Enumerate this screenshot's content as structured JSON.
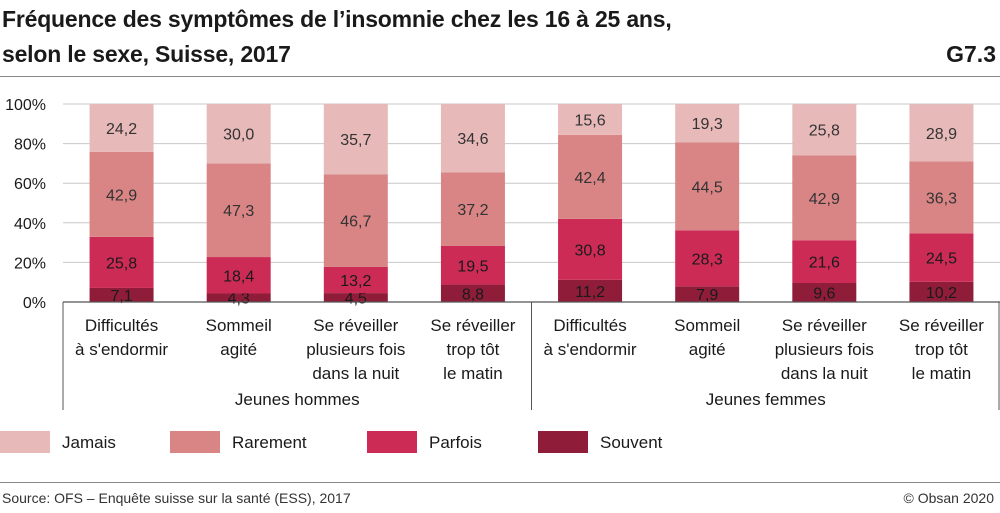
{
  "header": {
    "title_line1": "Fréquence des symptômes de l’insomnie chez les 16 à 25 ans,",
    "title_line2": "selon le sexe, Suisse, 2017",
    "code": "G7.3"
  },
  "footer": {
    "source": "Source: OFS – Enquête suisse sur la santé (ESS), 2017",
    "copyright": "© Obsan 2020"
  },
  "colors": {
    "Jamais": "#e8b9b9",
    "Rarement": "#d98585",
    "Parfois": "#cc2b56",
    "Souvent": "#8f1d3a",
    "grid": "#c8c8c8",
    "axis": "#555555"
  },
  "chart_data": {
    "type": "bar",
    "stacked": true,
    "normalized": true,
    "ylim": [
      0,
      100
    ],
    "yticks": [
      "0%",
      "20%",
      "40%",
      "60%",
      "80%",
      "100%"
    ],
    "ytick_values": [
      0,
      20,
      40,
      60,
      80,
      100
    ],
    "groups": [
      {
        "name": "Jeunes hommes",
        "categories": [
          [
            "Difficultés",
            "à s'endormir"
          ],
          [
            "Sommeil",
            "agité"
          ],
          [
            "Se réveiller",
            "plusieurs fois",
            "dans la nuit"
          ],
          [
            "Se réveiller",
            "trop tôt",
            "le matin"
          ]
        ]
      },
      {
        "name": "Jeunes femmes",
        "categories": [
          [
            "Difficultés",
            "à s'endormir"
          ],
          [
            "Sommeil",
            "agité"
          ],
          [
            "Se réveiller",
            "plusieurs fois",
            "dans la nuit"
          ],
          [
            "Se réveiller",
            "trop tôt",
            "le matin"
          ]
        ]
      }
    ],
    "series": [
      {
        "name": "Souvent",
        "values": [
          7.1,
          4.3,
          4.5,
          8.8,
          11.2,
          7.9,
          9.6,
          10.2
        ],
        "labels": [
          "7,1",
          "4,3",
          "4,5",
          "8,8",
          "11,2",
          "7,9",
          "9,6",
          "10,2"
        ]
      },
      {
        "name": "Parfois",
        "values": [
          25.8,
          18.4,
          13.2,
          19.5,
          30.8,
          28.3,
          21.6,
          24.5
        ],
        "labels": [
          "25,8",
          "18,4",
          "13,2",
          "19,5",
          "30,8",
          "28,3",
          "21,6",
          "24,5"
        ]
      },
      {
        "name": "Rarement",
        "values": [
          42.9,
          47.3,
          46.7,
          37.2,
          42.4,
          44.5,
          42.9,
          36.3
        ],
        "labels": [
          "42,9",
          "47,3",
          "46,7",
          "37,2",
          "42,4",
          "44,5",
          "42,9",
          "36,3"
        ]
      },
      {
        "name": "Jamais",
        "values": [
          24.2,
          30.0,
          35.7,
          34.6,
          15.6,
          19.3,
          25.8,
          28.9
        ],
        "labels": [
          "24,2",
          "30,0",
          "35,7",
          "34,6",
          "15,6",
          "19,3",
          "25,8",
          "28,9"
        ]
      }
    ],
    "legend": [
      "Jamais",
      "Rarement",
      "Parfois",
      "Souvent"
    ],
    "legend_position": "bottom"
  }
}
